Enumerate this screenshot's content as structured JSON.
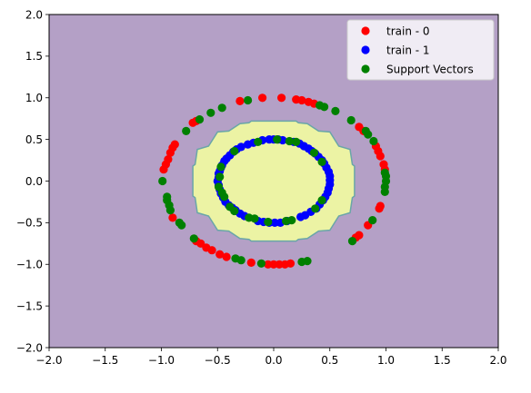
{
  "chart_data": {
    "type": "scatter",
    "title": "",
    "xlabel": "",
    "ylabel": "",
    "xlim": [
      -2.0,
      2.0
    ],
    "ylim": [
      -2.0,
      2.0
    ],
    "xticks": [
      -2.0,
      -1.5,
      -1.0,
      -0.5,
      0.0,
      0.5,
      1.0,
      1.5,
      2.0
    ],
    "yticks": [
      -2.0,
      -1.5,
      -1.0,
      -0.5,
      0.0,
      0.5,
      1.0,
      1.5,
      2.0
    ],
    "xtick_labels": [
      "−2.0",
      "−1.5",
      "−1.0",
      "−0.5",
      "0.0",
      "0.5",
      "1.0",
      "1.5",
      "2.0"
    ],
    "ytick_labels": [
      "−2.0",
      "−1.5",
      "−1.0",
      "−0.5",
      "0.0",
      "0.5",
      "1.0",
      "1.5",
      "2.0"
    ],
    "grid": false,
    "legend_position": "top-right",
    "decision_region": {
      "outside_color": "#b4a0c6",
      "inside_color": "#ecf3a4",
      "boundary_color": "#6aa6a8",
      "boundary_vertices": [
        [
          -0.2,
          0.72
        ],
        [
          0.2,
          0.72
        ],
        [
          0.22,
          0.7
        ],
        [
          0.3,
          0.69
        ],
        [
          0.4,
          0.6
        ],
        [
          0.5,
          0.59
        ],
        [
          0.58,
          0.42
        ],
        [
          0.68,
          0.38
        ],
        [
          0.7,
          0.2
        ],
        [
          0.72,
          0.18
        ],
        [
          0.72,
          -0.18
        ],
        [
          0.7,
          -0.2
        ],
        [
          0.68,
          -0.38
        ],
        [
          0.58,
          -0.42
        ],
        [
          0.5,
          -0.59
        ],
        [
          0.4,
          -0.6
        ],
        [
          0.3,
          -0.69
        ],
        [
          0.22,
          -0.7
        ],
        [
          0.2,
          -0.72
        ],
        [
          -0.2,
          -0.72
        ],
        [
          -0.22,
          -0.7
        ],
        [
          -0.3,
          -0.69
        ],
        [
          -0.4,
          -0.6
        ],
        [
          -0.5,
          -0.59
        ],
        [
          -0.58,
          -0.42
        ],
        [
          -0.68,
          -0.38
        ],
        [
          -0.7,
          -0.2
        ],
        [
          -0.72,
          -0.18
        ],
        [
          -0.72,
          0.18
        ],
        [
          -0.7,
          0.2
        ],
        [
          -0.68,
          0.38
        ],
        [
          -0.58,
          0.42
        ],
        [
          -0.5,
          0.59
        ],
        [
          -0.4,
          0.6
        ],
        [
          -0.3,
          0.69
        ],
        [
          -0.22,
          0.7
        ]
      ]
    },
    "series": [
      {
        "name": "train - 0",
        "color": "#ff0000",
        "points": [
          [
            -0.3,
            0.96
          ],
          [
            -0.1,
            1.0
          ],
          [
            0.07,
            1.0
          ],
          [
            0.2,
            0.98
          ],
          [
            0.25,
            0.97
          ],
          [
            0.31,
            0.95
          ],
          [
            0.36,
            0.93
          ],
          [
            -0.72,
            0.7
          ],
          [
            -0.69,
            0.72
          ],
          [
            -0.88,
            0.44
          ],
          [
            -0.9,
            0.4
          ],
          [
            -0.92,
            0.34
          ],
          [
            -0.94,
            0.26
          ],
          [
            -0.96,
            0.2
          ],
          [
            -0.98,
            0.14
          ],
          [
            -0.9,
            -0.44
          ],
          [
            -0.69,
            -0.72
          ],
          [
            -0.65,
            -0.75
          ],
          [
            -0.6,
            -0.8
          ],
          [
            -0.55,
            -0.83
          ],
          [
            -0.48,
            -0.88
          ],
          [
            -0.42,
            -0.91
          ],
          [
            -0.2,
            -0.98
          ],
          [
            -0.05,
            -1.0
          ],
          [
            0.0,
            -1.0
          ],
          [
            0.05,
            -1.0
          ],
          [
            0.1,
            -1.0
          ],
          [
            0.15,
            -0.99
          ],
          [
            0.76,
            -0.65
          ],
          [
            0.73,
            -0.68
          ],
          [
            0.84,
            -0.53
          ],
          [
            0.94,
            -0.33
          ],
          [
            0.95,
            -0.3
          ],
          [
            0.95,
            0.3
          ],
          [
            0.93,
            0.36
          ],
          [
            0.91,
            0.42
          ],
          [
            0.98,
            0.2
          ],
          [
            0.99,
            0.14
          ],
          [
            0.8,
            0.6
          ],
          [
            0.76,
            0.65
          ]
        ]
      },
      {
        "name": "train - 1",
        "color": "#0000ff",
        "points": [
          [
            -0.04,
            0.5
          ],
          [
            0.0,
            0.5
          ],
          [
            0.04,
            0.5
          ],
          [
            0.08,
            0.49
          ],
          [
            0.18,
            0.47
          ],
          [
            0.23,
            0.45
          ],
          [
            -0.1,
            0.49
          ],
          [
            -0.18,
            0.46
          ],
          [
            -0.23,
            0.44
          ],
          [
            -0.29,
            0.41
          ],
          [
            -0.33,
            0.38
          ],
          [
            -0.36,
            0.35
          ],
          [
            -0.39,
            0.31
          ],
          [
            -0.42,
            0.27
          ],
          [
            -0.44,
            0.24
          ],
          [
            -0.46,
            0.19
          ],
          [
            -0.47,
            0.16
          ],
          [
            -0.48,
            0.12
          ],
          [
            -0.49,
            0.09
          ],
          [
            -0.49,
            0.04
          ],
          [
            -0.5,
            0.0
          ],
          [
            -0.49,
            -0.05
          ],
          [
            -0.48,
            -0.1
          ],
          [
            -0.47,
            -0.15
          ],
          [
            -0.45,
            -0.2
          ],
          [
            -0.43,
            -0.25
          ],
          [
            -0.4,
            -0.29
          ],
          [
            -0.37,
            -0.32
          ],
          [
            -0.34,
            -0.35
          ],
          [
            -0.3,
            -0.39
          ],
          [
            -0.26,
            -0.42
          ],
          [
            -0.14,
            -0.48
          ],
          [
            -0.09,
            -0.49
          ],
          [
            -0.04,
            -0.5
          ],
          [
            0.01,
            -0.5
          ],
          [
            0.06,
            -0.5
          ],
          [
            0.12,
            -0.48
          ],
          [
            0.24,
            -0.43
          ],
          [
            0.28,
            -0.41
          ],
          [
            0.33,
            -0.37
          ],
          [
            0.38,
            -0.33
          ],
          [
            0.41,
            -0.28
          ],
          [
            0.44,
            -0.23
          ],
          [
            0.46,
            -0.19
          ],
          [
            0.48,
            -0.14
          ],
          [
            0.49,
            -0.09
          ],
          [
            0.5,
            -0.04
          ],
          [
            0.5,
            0.01
          ],
          [
            0.5,
            0.06
          ],
          [
            0.49,
            0.11
          ],
          [
            0.47,
            0.16
          ],
          [
            0.45,
            0.21
          ],
          [
            0.43,
            0.25
          ],
          [
            0.4,
            0.29
          ],
          [
            0.37,
            0.33
          ],
          [
            0.34,
            0.36
          ],
          [
            0.31,
            0.39
          ],
          [
            0.27,
            0.42
          ]
        ]
      },
      {
        "name": "Support Vectors",
        "color": "#008000",
        "points": [
          [
            -0.23,
            0.97
          ],
          [
            -0.46,
            0.88
          ],
          [
            -0.56,
            0.82
          ],
          [
            -0.66,
            0.74
          ],
          [
            -0.78,
            0.6
          ],
          [
            -0.99,
            0.0
          ],
          [
            -0.95,
            -0.19
          ],
          [
            -0.95,
            -0.23
          ],
          [
            -0.93,
            -0.29
          ],
          [
            -0.92,
            -0.35
          ],
          [
            -0.84,
            -0.5
          ],
          [
            -0.82,
            -0.53
          ],
          [
            -0.71,
            -0.69
          ],
          [
            -0.34,
            -0.93
          ],
          [
            -0.29,
            -0.95
          ],
          [
            -0.11,
            -0.99
          ],
          [
            0.25,
            -0.97
          ],
          [
            0.3,
            -0.96
          ],
          [
            0.7,
            -0.72
          ],
          [
            0.88,
            -0.47
          ],
          [
            0.99,
            -0.13
          ],
          [
            0.99,
            -0.07
          ],
          [
            1.0,
            0.0
          ],
          [
            1.0,
            0.06
          ],
          [
            0.99,
            0.1
          ],
          [
            0.89,
            0.48
          ],
          [
            0.84,
            0.56
          ],
          [
            0.82,
            0.6
          ],
          [
            0.69,
            0.73
          ],
          [
            0.55,
            0.84
          ],
          [
            0.45,
            0.89
          ],
          [
            0.41,
            0.91
          ],
          [
            -0.14,
            0.47
          ],
          [
            -0.35,
            0.36
          ],
          [
            -0.47,
            0.17
          ],
          [
            -0.48,
            0.05
          ],
          [
            -0.49,
            -0.07
          ],
          [
            -0.46,
            -0.14
          ],
          [
            -0.44,
            -0.19
          ],
          [
            -0.39,
            -0.31
          ],
          [
            -0.35,
            -0.36
          ],
          [
            -0.22,
            -0.44
          ],
          [
            -0.17,
            -0.45
          ],
          [
            -0.05,
            -0.49
          ],
          [
            0.11,
            -0.48
          ],
          [
            0.16,
            -0.47
          ],
          [
            0.37,
            -0.33
          ],
          [
            0.43,
            -0.23
          ],
          [
            0.43,
            0.23
          ],
          [
            0.36,
            0.34
          ],
          [
            0.2,
            0.47
          ],
          [
            0.14,
            0.48
          ],
          [
            0.03,
            0.5
          ]
        ]
      }
    ]
  }
}
